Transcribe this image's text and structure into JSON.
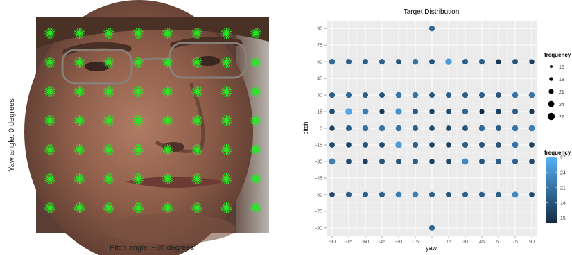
{
  "figure": {
    "left_panel": {
      "y_caption": "Yaw angle: 0 degrees",
      "x_caption": "Pitch angle: −30 degrees",
      "marker_color": "#22ee22",
      "grid_rows": 7,
      "grid_cols": 8
    }
  },
  "chart_data": {
    "type": "scatter",
    "title": "Target Distribution",
    "xlabel": "yaw",
    "ylabel": "pitch",
    "x_ticks": [
      -90,
      -75,
      -60,
      -45,
      -30,
      -15,
      0,
      15,
      30,
      45,
      60,
      75,
      90
    ],
    "y_ticks": [
      90,
      75,
      60,
      45,
      30,
      15,
      0,
      -15,
      -30,
      -45,
      -60,
      -75,
      -90
    ],
    "xlim": [
      -95,
      95
    ],
    "ylim": [
      -97,
      97
    ],
    "grid": true,
    "panel_background": "#ebebeb",
    "legend_placement": "right",
    "size_legend": {
      "title": "frequency",
      "values": [
        15,
        18,
        21,
        24,
        27
      ]
    },
    "color_legend": {
      "title": "frequency",
      "ticks": [
        27,
        24,
        21,
        18,
        15
      ],
      "low_color": "#132b43",
      "high_color": "#56b1f7",
      "range": [
        14,
        27
      ]
    },
    "points": [
      {
        "yaw": 0,
        "pitch": 90,
        "frequency": 20
      },
      {
        "yaw": -90,
        "pitch": 60,
        "frequency": 20
      },
      {
        "yaw": -75,
        "pitch": 60,
        "frequency": 19
      },
      {
        "yaw": -60,
        "pitch": 60,
        "frequency": 19
      },
      {
        "yaw": -45,
        "pitch": 60,
        "frequency": 19
      },
      {
        "yaw": -30,
        "pitch": 60,
        "frequency": 18
      },
      {
        "yaw": -15,
        "pitch": 60,
        "frequency": 21
      },
      {
        "yaw": 0,
        "pitch": 60,
        "frequency": 18
      },
      {
        "yaw": 15,
        "pitch": 60,
        "frequency": 25
      },
      {
        "yaw": 30,
        "pitch": 60,
        "frequency": 19
      },
      {
        "yaw": 45,
        "pitch": 60,
        "frequency": 19
      },
      {
        "yaw": 60,
        "pitch": 60,
        "frequency": 15
      },
      {
        "yaw": 75,
        "pitch": 60,
        "frequency": 18
      },
      {
        "yaw": 90,
        "pitch": 60,
        "frequency": 16
      },
      {
        "yaw": -90,
        "pitch": 30,
        "frequency": 19
      },
      {
        "yaw": -75,
        "pitch": 30,
        "frequency": 20
      },
      {
        "yaw": -60,
        "pitch": 30,
        "frequency": 19
      },
      {
        "yaw": -45,
        "pitch": 30,
        "frequency": 18
      },
      {
        "yaw": -30,
        "pitch": 30,
        "frequency": 21
      },
      {
        "yaw": -15,
        "pitch": 30,
        "frequency": 21
      },
      {
        "yaw": 0,
        "pitch": 30,
        "frequency": 18
      },
      {
        "yaw": 15,
        "pitch": 30,
        "frequency": 19
      },
      {
        "yaw": 30,
        "pitch": 30,
        "frequency": 19
      },
      {
        "yaw": 45,
        "pitch": 30,
        "frequency": 19
      },
      {
        "yaw": 60,
        "pitch": 30,
        "frequency": 18
      },
      {
        "yaw": 75,
        "pitch": 30,
        "frequency": 21
      },
      {
        "yaw": 90,
        "pitch": 30,
        "frequency": 21
      },
      {
        "yaw": -90,
        "pitch": 15,
        "frequency": 17
      },
      {
        "yaw": -75,
        "pitch": 15,
        "frequency": 26
      },
      {
        "yaw": -60,
        "pitch": 15,
        "frequency": 22
      },
      {
        "yaw": -45,
        "pitch": 15,
        "frequency": 15
      },
      {
        "yaw": -30,
        "pitch": 15,
        "frequency": 24
      },
      {
        "yaw": -15,
        "pitch": 15,
        "frequency": 19
      },
      {
        "yaw": 0,
        "pitch": 15,
        "frequency": 16
      },
      {
        "yaw": 15,
        "pitch": 15,
        "frequency": 17
      },
      {
        "yaw": 30,
        "pitch": 15,
        "frequency": 20
      },
      {
        "yaw": 45,
        "pitch": 15,
        "frequency": 14
      },
      {
        "yaw": 60,
        "pitch": 15,
        "frequency": 16
      },
      {
        "yaw": 75,
        "pitch": 15,
        "frequency": 19
      },
      {
        "yaw": 90,
        "pitch": 15,
        "frequency": 15
      },
      {
        "yaw": -90,
        "pitch": 0,
        "frequency": 16
      },
      {
        "yaw": -75,
        "pitch": 0,
        "frequency": 19
      },
      {
        "yaw": -60,
        "pitch": 0,
        "frequency": 21
      },
      {
        "yaw": -45,
        "pitch": 0,
        "frequency": 21
      },
      {
        "yaw": -30,
        "pitch": 0,
        "frequency": 21
      },
      {
        "yaw": -15,
        "pitch": 0,
        "frequency": 19
      },
      {
        "yaw": 0,
        "pitch": 0,
        "frequency": 17
      },
      {
        "yaw": 15,
        "pitch": 0,
        "frequency": 17
      },
      {
        "yaw": 30,
        "pitch": 0,
        "frequency": 18
      },
      {
        "yaw": 45,
        "pitch": 0,
        "frequency": 20
      },
      {
        "yaw": 60,
        "pitch": 0,
        "frequency": 19
      },
      {
        "yaw": 75,
        "pitch": 0,
        "frequency": 21
      },
      {
        "yaw": 90,
        "pitch": 0,
        "frequency": 22
      },
      {
        "yaw": -90,
        "pitch": -15,
        "frequency": 17
      },
      {
        "yaw": -75,
        "pitch": -15,
        "frequency": 16
      },
      {
        "yaw": -60,
        "pitch": -15,
        "frequency": 18
      },
      {
        "yaw": -45,
        "pitch": -15,
        "frequency": 17
      },
      {
        "yaw": -30,
        "pitch": -15,
        "frequency": 25
      },
      {
        "yaw": -15,
        "pitch": -15,
        "frequency": 19
      },
      {
        "yaw": 0,
        "pitch": -15,
        "frequency": 16
      },
      {
        "yaw": 15,
        "pitch": -15,
        "frequency": 16
      },
      {
        "yaw": 30,
        "pitch": -15,
        "frequency": 19
      },
      {
        "yaw": 45,
        "pitch": -15,
        "frequency": 18
      },
      {
        "yaw": 60,
        "pitch": -15,
        "frequency": 18
      },
      {
        "yaw": 75,
        "pitch": -15,
        "frequency": 21
      },
      {
        "yaw": 90,
        "pitch": -15,
        "frequency": 16
      },
      {
        "yaw": -90,
        "pitch": -30,
        "frequency": 22
      },
      {
        "yaw": -75,
        "pitch": -30,
        "frequency": 17
      },
      {
        "yaw": -60,
        "pitch": -30,
        "frequency": 16
      },
      {
        "yaw": -45,
        "pitch": -30,
        "frequency": 18
      },
      {
        "yaw": -30,
        "pitch": -30,
        "frequency": 18
      },
      {
        "yaw": -15,
        "pitch": -30,
        "frequency": 19
      },
      {
        "yaw": 0,
        "pitch": -30,
        "frequency": 16
      },
      {
        "yaw": 15,
        "pitch": -30,
        "frequency": 17
      },
      {
        "yaw": 30,
        "pitch": -30,
        "frequency": 23
      },
      {
        "yaw": 45,
        "pitch": -30,
        "frequency": 18
      },
      {
        "yaw": 60,
        "pitch": -30,
        "frequency": 19
      },
      {
        "yaw": 75,
        "pitch": -30,
        "frequency": 19
      },
      {
        "yaw": 90,
        "pitch": -30,
        "frequency": 17
      },
      {
        "yaw": -90,
        "pitch": -60,
        "frequency": 17
      },
      {
        "yaw": -75,
        "pitch": -60,
        "frequency": 19
      },
      {
        "yaw": -60,
        "pitch": -60,
        "frequency": 19
      },
      {
        "yaw": -45,
        "pitch": -60,
        "frequency": 19
      },
      {
        "yaw": -30,
        "pitch": -60,
        "frequency": 22
      },
      {
        "yaw": -15,
        "pitch": -60,
        "frequency": 22
      },
      {
        "yaw": 0,
        "pitch": -60,
        "frequency": 19
      },
      {
        "yaw": 15,
        "pitch": -60,
        "frequency": 18
      },
      {
        "yaw": 30,
        "pitch": -60,
        "frequency": 19
      },
      {
        "yaw": 45,
        "pitch": -60,
        "frequency": 19
      },
      {
        "yaw": 60,
        "pitch": -60,
        "frequency": 19
      },
      {
        "yaw": 75,
        "pitch": -60,
        "frequency": 23
      },
      {
        "yaw": 90,
        "pitch": -60,
        "frequency": 17
      },
      {
        "yaw": 0,
        "pitch": -90,
        "frequency": 20
      }
    ]
  }
}
